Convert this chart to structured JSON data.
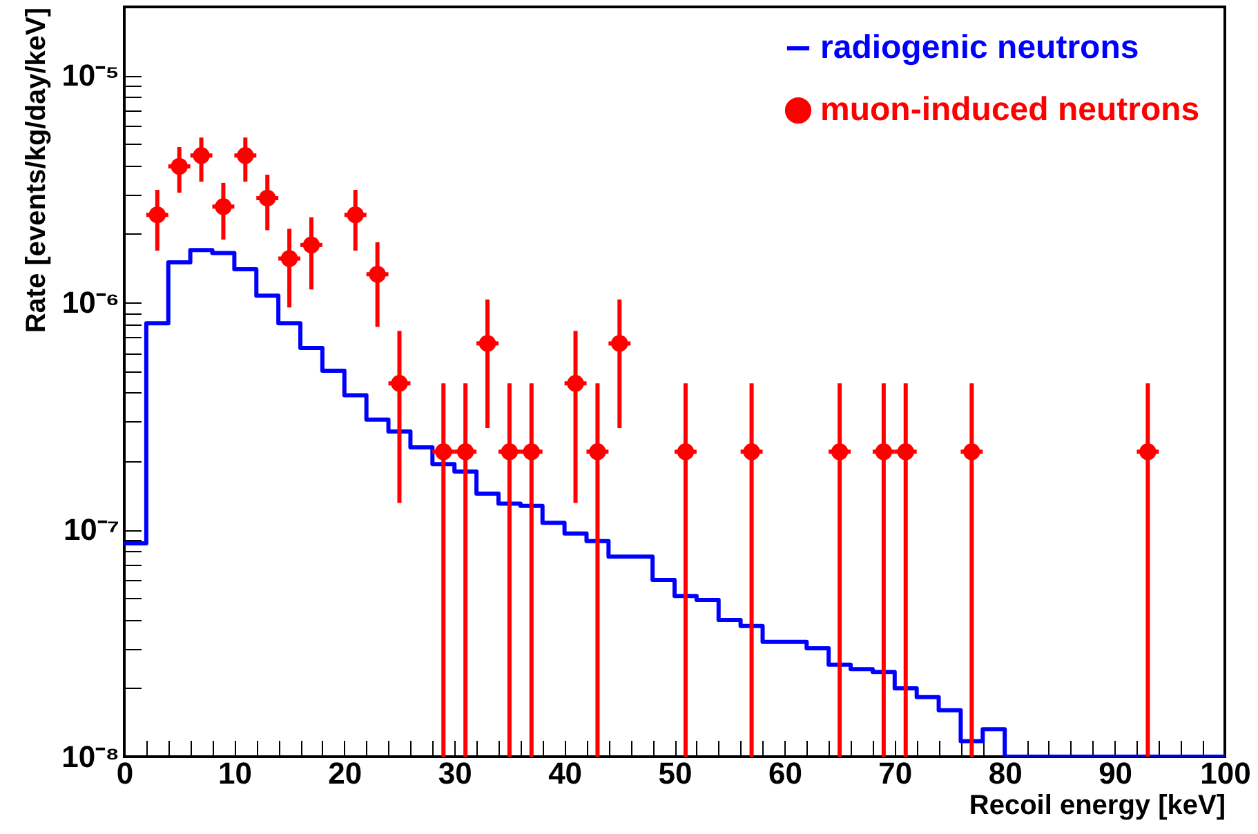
{
  "chart_data": {
    "type": "step",
    "xlabel": "Recoil energy [keV]",
    "ylabel": "Rate [events/kg/day/keV]",
    "log": "y",
    "legend": "top right",
    "grid": false,
    "xlim": [
      0,
      100
    ],
    "ylim": [
      1e-08,
      2e-05
    ],
    "xticks": [
      0,
      {
        "value": 2,
        "label": null
      },
      {
        "value": 4,
        "label": null
      },
      {
        "value": 6,
        "label": null
      },
      {
        "value": 8,
        "label": null
      },
      10,
      {
        "value": 12,
        "label": null
      },
      {
        "value": 14,
        "label": null
      },
      {
        "value": 16,
        "label": null
      },
      {
        "value": 18,
        "label": null
      },
      20,
      {
        "value": 22,
        "label": null
      },
      {
        "value": 24,
        "label": null
      },
      {
        "value": 26,
        "label": null
      },
      {
        "value": 28,
        "label": null
      },
      30,
      {
        "value": 32,
        "label": null
      },
      {
        "value": 34,
        "label": null
      },
      {
        "value": 36,
        "label": null
      },
      {
        "value": 38,
        "label": null
      },
      40,
      {
        "value": 42,
        "label": null
      },
      {
        "value": 44,
        "label": null
      },
      {
        "value": 46,
        "label": null
      },
      {
        "value": 48,
        "label": null
      },
      50,
      {
        "value": 52,
        "label": null
      },
      {
        "value": 54,
        "label": null
      },
      {
        "value": 56,
        "label": null
      },
      {
        "value": 58,
        "label": null
      },
      60,
      {
        "value": 62,
        "label": null
      },
      {
        "value": 64,
        "label": null
      },
      {
        "value": 66,
        "label": null
      },
      {
        "value": 68,
        "label": null
      },
      70,
      {
        "value": 72,
        "label": null
      },
      {
        "value": 74,
        "label": null
      },
      {
        "value": 76,
        "label": null
      },
      {
        "value": 78,
        "label": null
      },
      80,
      {
        "value": 82,
        "label": null
      },
      {
        "value": 84,
        "label": null
      },
      {
        "value": 86,
        "label": null
      },
      {
        "value": 88,
        "label": null
      },
      90,
      {
        "value": 92,
        "label": null
      },
      {
        "value": 94,
        "label": null
      },
      {
        "value": 96,
        "label": null
      },
      {
        "value": 98,
        "label": null
      },
      100
    ],
    "yticks": [
      {
        "value": 1e-08,
        "label": "10⁻⁸"
      },
      {
        "value": 2e-08,
        "label": null
      },
      {
        "value": 3e-08,
        "label": null
      },
      {
        "value": 4e-08,
        "label": null
      },
      {
        "value": 5e-08,
        "label": null
      },
      {
        "value": 6e-08,
        "label": null
      },
      {
        "value": 7e-08,
        "label": null
      },
      {
        "value": 8e-08,
        "label": null
      },
      {
        "value": 9e-08,
        "label": null
      },
      {
        "value": 1e-07,
        "label": "10⁻⁷"
      },
      {
        "value": 2e-07,
        "label": null
      },
      {
        "value": 3e-07,
        "label": null
      },
      {
        "value": 4e-07,
        "label": null
      },
      {
        "value": 5e-07,
        "label": null
      },
      {
        "value": 6e-07,
        "label": null
      },
      {
        "value": 7e-07,
        "label": null
      },
      {
        "value": 8e-07,
        "label": null
      },
      {
        "value": 9e-07,
        "label": null
      },
      {
        "value": 1e-06,
        "label": "10⁻⁶"
      },
      {
        "value": 2e-06,
        "label": null
      },
      {
        "value": 3e-06,
        "label": null
      },
      {
        "value": 4e-06,
        "label": null
      },
      {
        "value": 5e-06,
        "label": null
      },
      {
        "value": 6e-06,
        "label": null
      },
      {
        "value": 7e-06,
        "label": null
      },
      {
        "value": 8e-06,
        "label": null
      },
      {
        "value": 9e-06,
        "label": null
      },
      {
        "value": 1e-05,
        "label": "10⁻⁵"
      },
      {
        "value": 2e-05,
        "label": null
      }
    ],
    "series": [
      {
        "name": "radiogenic neutrons",
        "type": "step",
        "color": "#0000ff",
        "line_style": "solid",
        "x": [
          0,
          2,
          4,
          6,
          8,
          10,
          12,
          14,
          16,
          18,
          20,
          22,
          24,
          26,
          28,
          30,
          32,
          34,
          36,
          38,
          40,
          42,
          44,
          46,
          48,
          50,
          52,
          54,
          56,
          58,
          60,
          62,
          64,
          66,
          68,
          70,
          72,
          74,
          76,
          78,
          80,
          100
        ],
        "values": [
          8.7e-08,
          8.1e-07,
          1.5e-06,
          1.7e-06,
          1.65e-06,
          1.4e-06,
          1.07e-06,
          8.1e-07,
          6.3e-07,
          5e-07,
          3.9e-07,
          3.05e-07,
          2.7e-07,
          2.3e-07,
          1.94e-07,
          1.8e-07,
          1.44e-07,
          1.3e-07,
          1.27e-07,
          1.07e-07,
          9.6e-08,
          8.9e-08,
          7.6e-08,
          7.6e-08,
          6e-08,
          5.1e-08,
          4.9e-08,
          4e-08,
          3.76e-08,
          3.2e-08,
          3.2e-08,
          3e-08,
          2.54e-08,
          2.43e-08,
          2.36e-08,
          2e-08,
          1.83e-08,
          1.6e-08,
          1.17e-08,
          1.32e-08,
          1e-08,
          1e-08
        ]
      },
      {
        "name": "muon-induced neutrons",
        "type": "scatter",
        "color": "#ff0000",
        "marker": "circle",
        "x": [
          3,
          5,
          7,
          9,
          11,
          13,
          15,
          17,
          21,
          23,
          25,
          29,
          31,
          33,
          35,
          37,
          41,
          43,
          45,
          51,
          57,
          65,
          69,
          71,
          77,
          93
        ],
        "values": [
          2.43e-06,
          3.97e-06,
          4.43e-06,
          2.64e-06,
          4.43e-06,
          2.88e-06,
          1.56e-06,
          1.79e-06,
          2.43e-06,
          1.33e-06,
          4.4e-07,
          2.2e-07,
          2.2e-07,
          6.6e-07,
          2.2e-07,
          2.2e-07,
          4.4e-07,
          2.2e-07,
          6.6e-07,
          2.2e-07,
          2.2e-07,
          2.2e-07,
          2.2e-07,
          2.2e-07,
          2.2e-07,
          2.2e-07
        ],
        "errors": [
          [
            1.69e-06,
            3.13e-06
          ],
          [
            3.04e-06,
            4.83e-06
          ],
          [
            3.4e-06,
            5.32e-06
          ],
          [
            1.89e-06,
            3.36e-06
          ],
          [
            3.4e-06,
            5.32e-06
          ],
          [
            2.08e-06,
            3.65e-06
          ],
          [
            9.5e-07,
            2.11e-06
          ],
          [
            1.14e-06,
            2.37e-06
          ],
          [
            1.69e-06,
            3.13e-06
          ],
          [
            7.8e-07,
            1.84e-06
          ],
          [
            1.31e-07,
            7.5e-07
          ],
          [
            1e-08,
            4.4e-07
          ],
          [
            1e-08,
            4.4e-07
          ],
          [
            2.8e-07,
            1.03e-06
          ],
          [
            1e-08,
            4.4e-07
          ],
          [
            1e-08,
            4.4e-07
          ],
          [
            1.31e-07,
            7.5e-07
          ],
          [
            1e-08,
            4.4e-07
          ],
          [
            2.8e-07,
            1.03e-06
          ],
          [
            1e-08,
            4.4e-07
          ],
          [
            1e-08,
            4.4e-07
          ],
          [
            1e-08,
            4.4e-07
          ],
          [
            1e-08,
            4.4e-07
          ],
          [
            1e-08,
            4.4e-07
          ],
          [
            1e-08,
            4.4e-07
          ],
          [
            1e-08,
            4.4e-07
          ]
        ],
        "xerrors": [
          1,
          1,
          1,
          1,
          1,
          1,
          1,
          1,
          1,
          1,
          1,
          1,
          1,
          1,
          1,
          1,
          1,
          1,
          1,
          1,
          1,
          1,
          1,
          1,
          1,
          1
        ]
      }
    ]
  }
}
